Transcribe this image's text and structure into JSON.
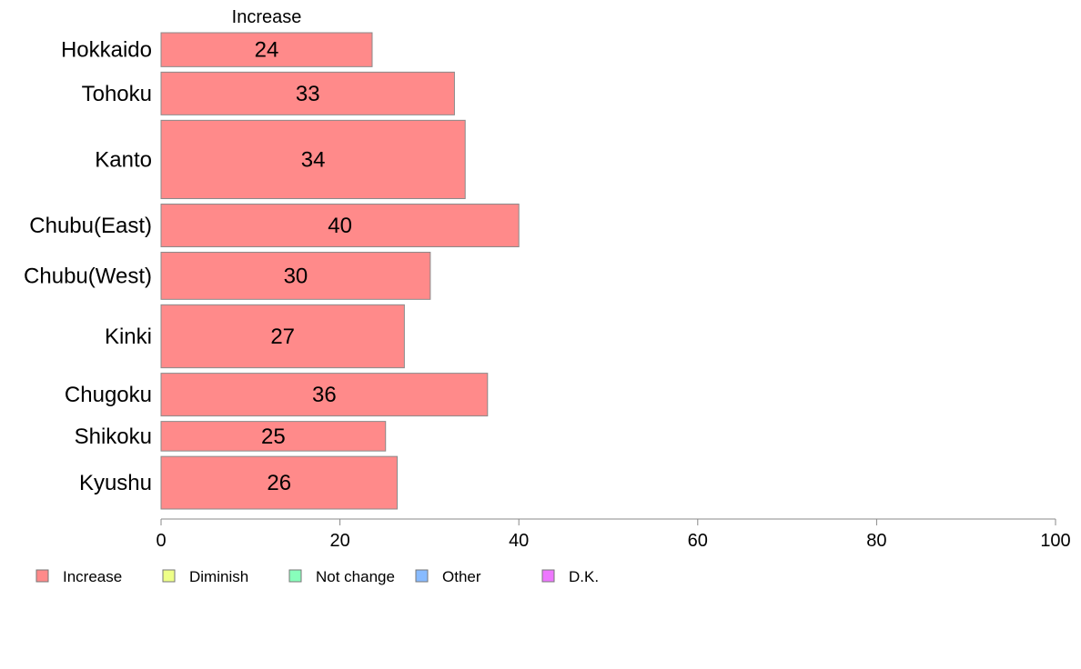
{
  "chart_data": {
    "type": "bar",
    "orientation": "horizontal",
    "series_header": "Increase",
    "categories": [
      "Hokkaido",
      "Tohoku",
      "Kanto",
      "Chubu(East)",
      "Chubu(West)",
      "Kinki",
      "Chugoku",
      "Shikoku",
      "Kyushu"
    ],
    "category_weights": [
      0.62,
      0.78,
      1.43,
      0.78,
      0.86,
      1.15,
      0.78,
      0.54,
      0.96
    ],
    "series": [
      {
        "name": "Increase",
        "values": [
          23.6,
          32.8,
          34,
          40,
          30.1,
          27.2,
          36.5,
          25.1,
          26.4
        ],
        "labels": [
          "24",
          "33",
          "34",
          "40",
          "30",
          "27",
          "36",
          "25",
          "26"
        ],
        "color": "#ff8a8a"
      }
    ],
    "xlim": [
      0,
      100
    ],
    "xticks": [
      0,
      20,
      40,
      60,
      80,
      100
    ],
    "grid": false,
    "legend": {
      "position": "bottom-left",
      "entries": [
        {
          "label": "Increase",
          "color": "#ff8a8a"
        },
        {
          "label": "Diminish",
          "color": "#eeff88"
        },
        {
          "label": "Not change",
          "color": "#88ffbb"
        },
        {
          "label": "Other",
          "color": "#88bbff"
        },
        {
          "label": "D.K.",
          "color": "#ee77ff"
        }
      ]
    }
  }
}
